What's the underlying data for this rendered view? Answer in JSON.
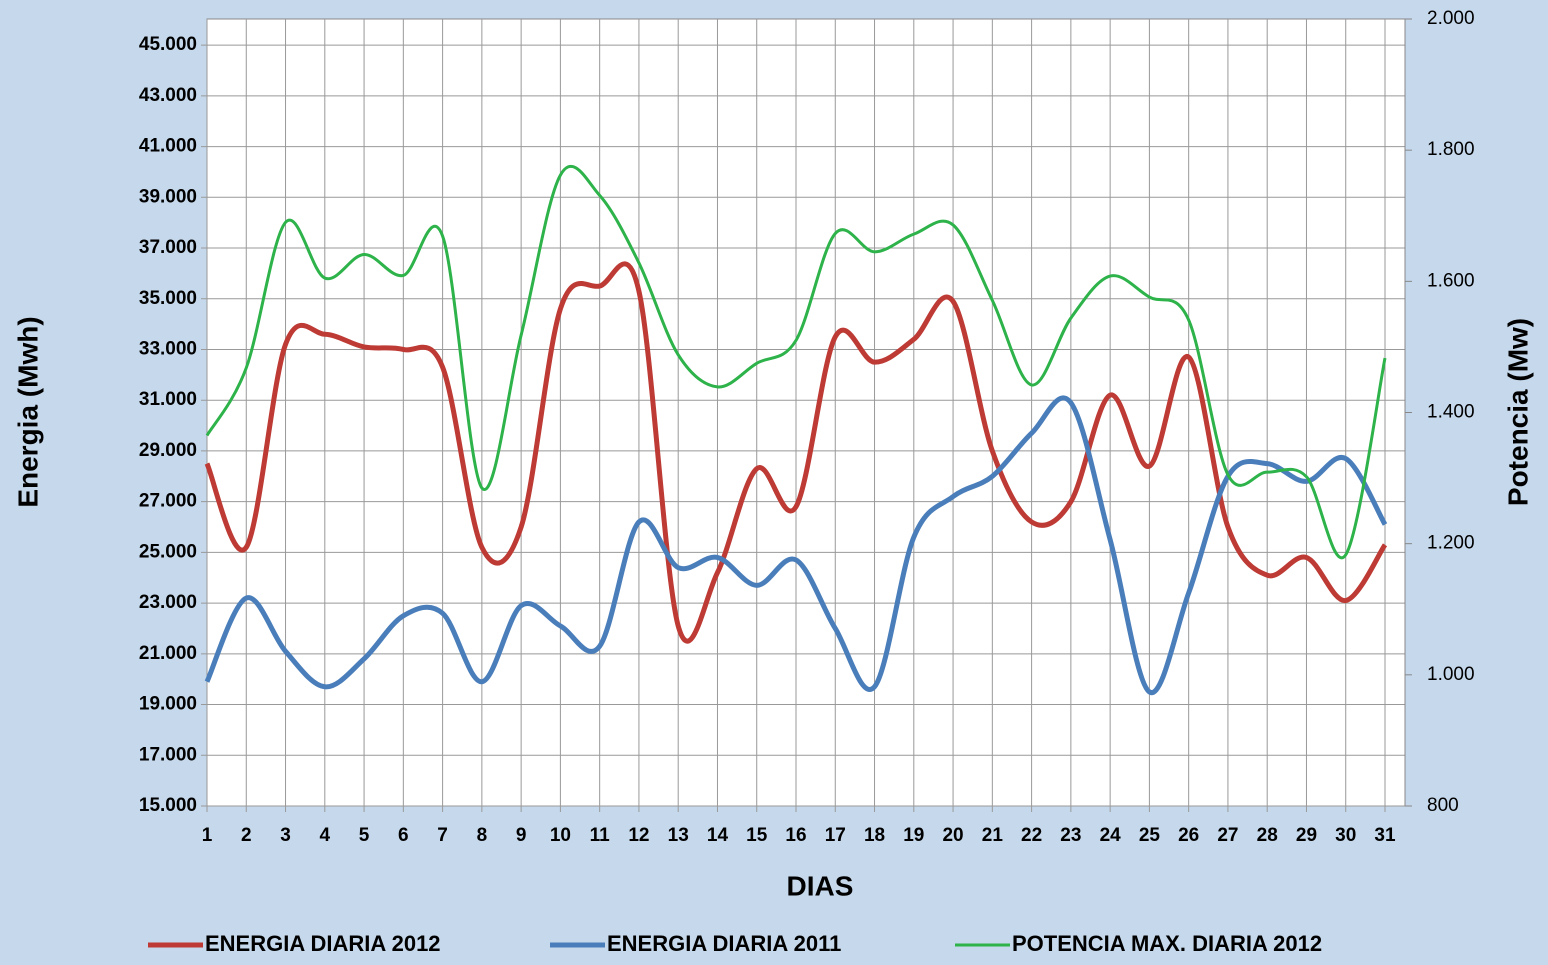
{
  "chart_data": {
    "type": "line",
    "x_label": "DIAS",
    "y_label": "Energia (Mwh)",
    "y2_label": "Potencia (Mw)",
    "categories": [
      "1",
      "2",
      "3",
      "4",
      "5",
      "6",
      "7",
      "8",
      "9",
      "10",
      "11",
      "12",
      "13",
      "14",
      "15",
      "16",
      "17",
      "18",
      "19",
      "20",
      "21",
      "22",
      "23",
      "24",
      "25",
      "26",
      "27",
      "28",
      "29",
      "30",
      "31"
    ],
    "series": [
      {
        "name": "ENERGIA DIARIA 2012",
        "color": "#be3a34",
        "values": [
          28500,
          25200,
          33200,
          33600,
          33100,
          33000,
          32300,
          25200,
          26000,
          34600,
          35500,
          35300,
          22100,
          24200,
          28300,
          26800,
          33500,
          32500,
          33400,
          34900,
          29000,
          26200,
          27000,
          31200,
          28400,
          32700,
          26000,
          24100,
          24800,
          23100,
          25300
        ]
      },
      {
        "name": "ENERGIA DIARIA 2011",
        "color": "#4a7ebb",
        "values": [
          19900,
          23200,
          21100,
          19700,
          20800,
          22500,
          22600,
          19900,
          22900,
          22100,
          21300,
          26200,
          24400,
          24800,
          23700,
          24700,
          22000,
          19700,
          25600,
          27200,
          28000,
          29700,
          30900,
          25500,
          19500,
          23400,
          28000,
          28500,
          27800,
          28700,
          26100
        ]
      },
      {
        "name": "POTENCIA MAX. DIARIA 2012",
        "color": "#2db34a",
        "axis": "y2",
        "values": [
          1365,
          1468,
          1690,
          1605,
          1641,
          1609,
          1669,
          1285,
          1518,
          1762,
          1731,
          1628,
          1488,
          1439,
          1475,
          1510,
          1673,
          1645,
          1672,
          1686,
          1571,
          1442,
          1544,
          1608,
          1576,
          1541,
          1305,
          1309,
          1302,
          1183,
          1483
        ]
      }
    ],
    "ylim": [
      15000,
      46030
    ],
    "yticks": [
      {
        "value": 15000,
        "label": "15.000"
      },
      {
        "value": 17000,
        "label": "17.000"
      },
      {
        "value": 19000,
        "label": "19.000"
      },
      {
        "value": 21000,
        "label": "21.000"
      },
      {
        "value": 23000,
        "label": "23.000"
      },
      {
        "value": 25000,
        "label": "25.000"
      },
      {
        "value": 27000,
        "label": "27.000"
      },
      {
        "value": 29000,
        "label": "29.000"
      },
      {
        "value": 31000,
        "label": "31.000"
      },
      {
        "value": 33000,
        "label": "33.000"
      },
      {
        "value": 35000,
        "label": "35.000"
      },
      {
        "value": 37000,
        "label": "37.000"
      },
      {
        "value": 39000,
        "label": "39.000"
      },
      {
        "value": 41000,
        "label": "41.000"
      },
      {
        "value": 43000,
        "label": "43.000"
      },
      {
        "value": 45000,
        "label": "45.000"
      }
    ],
    "y2lim": [
      800,
      2000
    ],
    "y2ticks": [
      800,
      {
        "value": 1000,
        "label": "1.000"
      },
      {
        "value": 1200,
        "label": "1.200"
      },
      {
        "value": 1400,
        "label": "1.400"
      },
      {
        "value": 1600,
        "label": "1.600"
      },
      {
        "value": 1800,
        "label": "1.800"
      },
      {
        "value": 2000,
        "label": "2.000"
      }
    ],
    "grid": true,
    "legend": "bottom"
  }
}
